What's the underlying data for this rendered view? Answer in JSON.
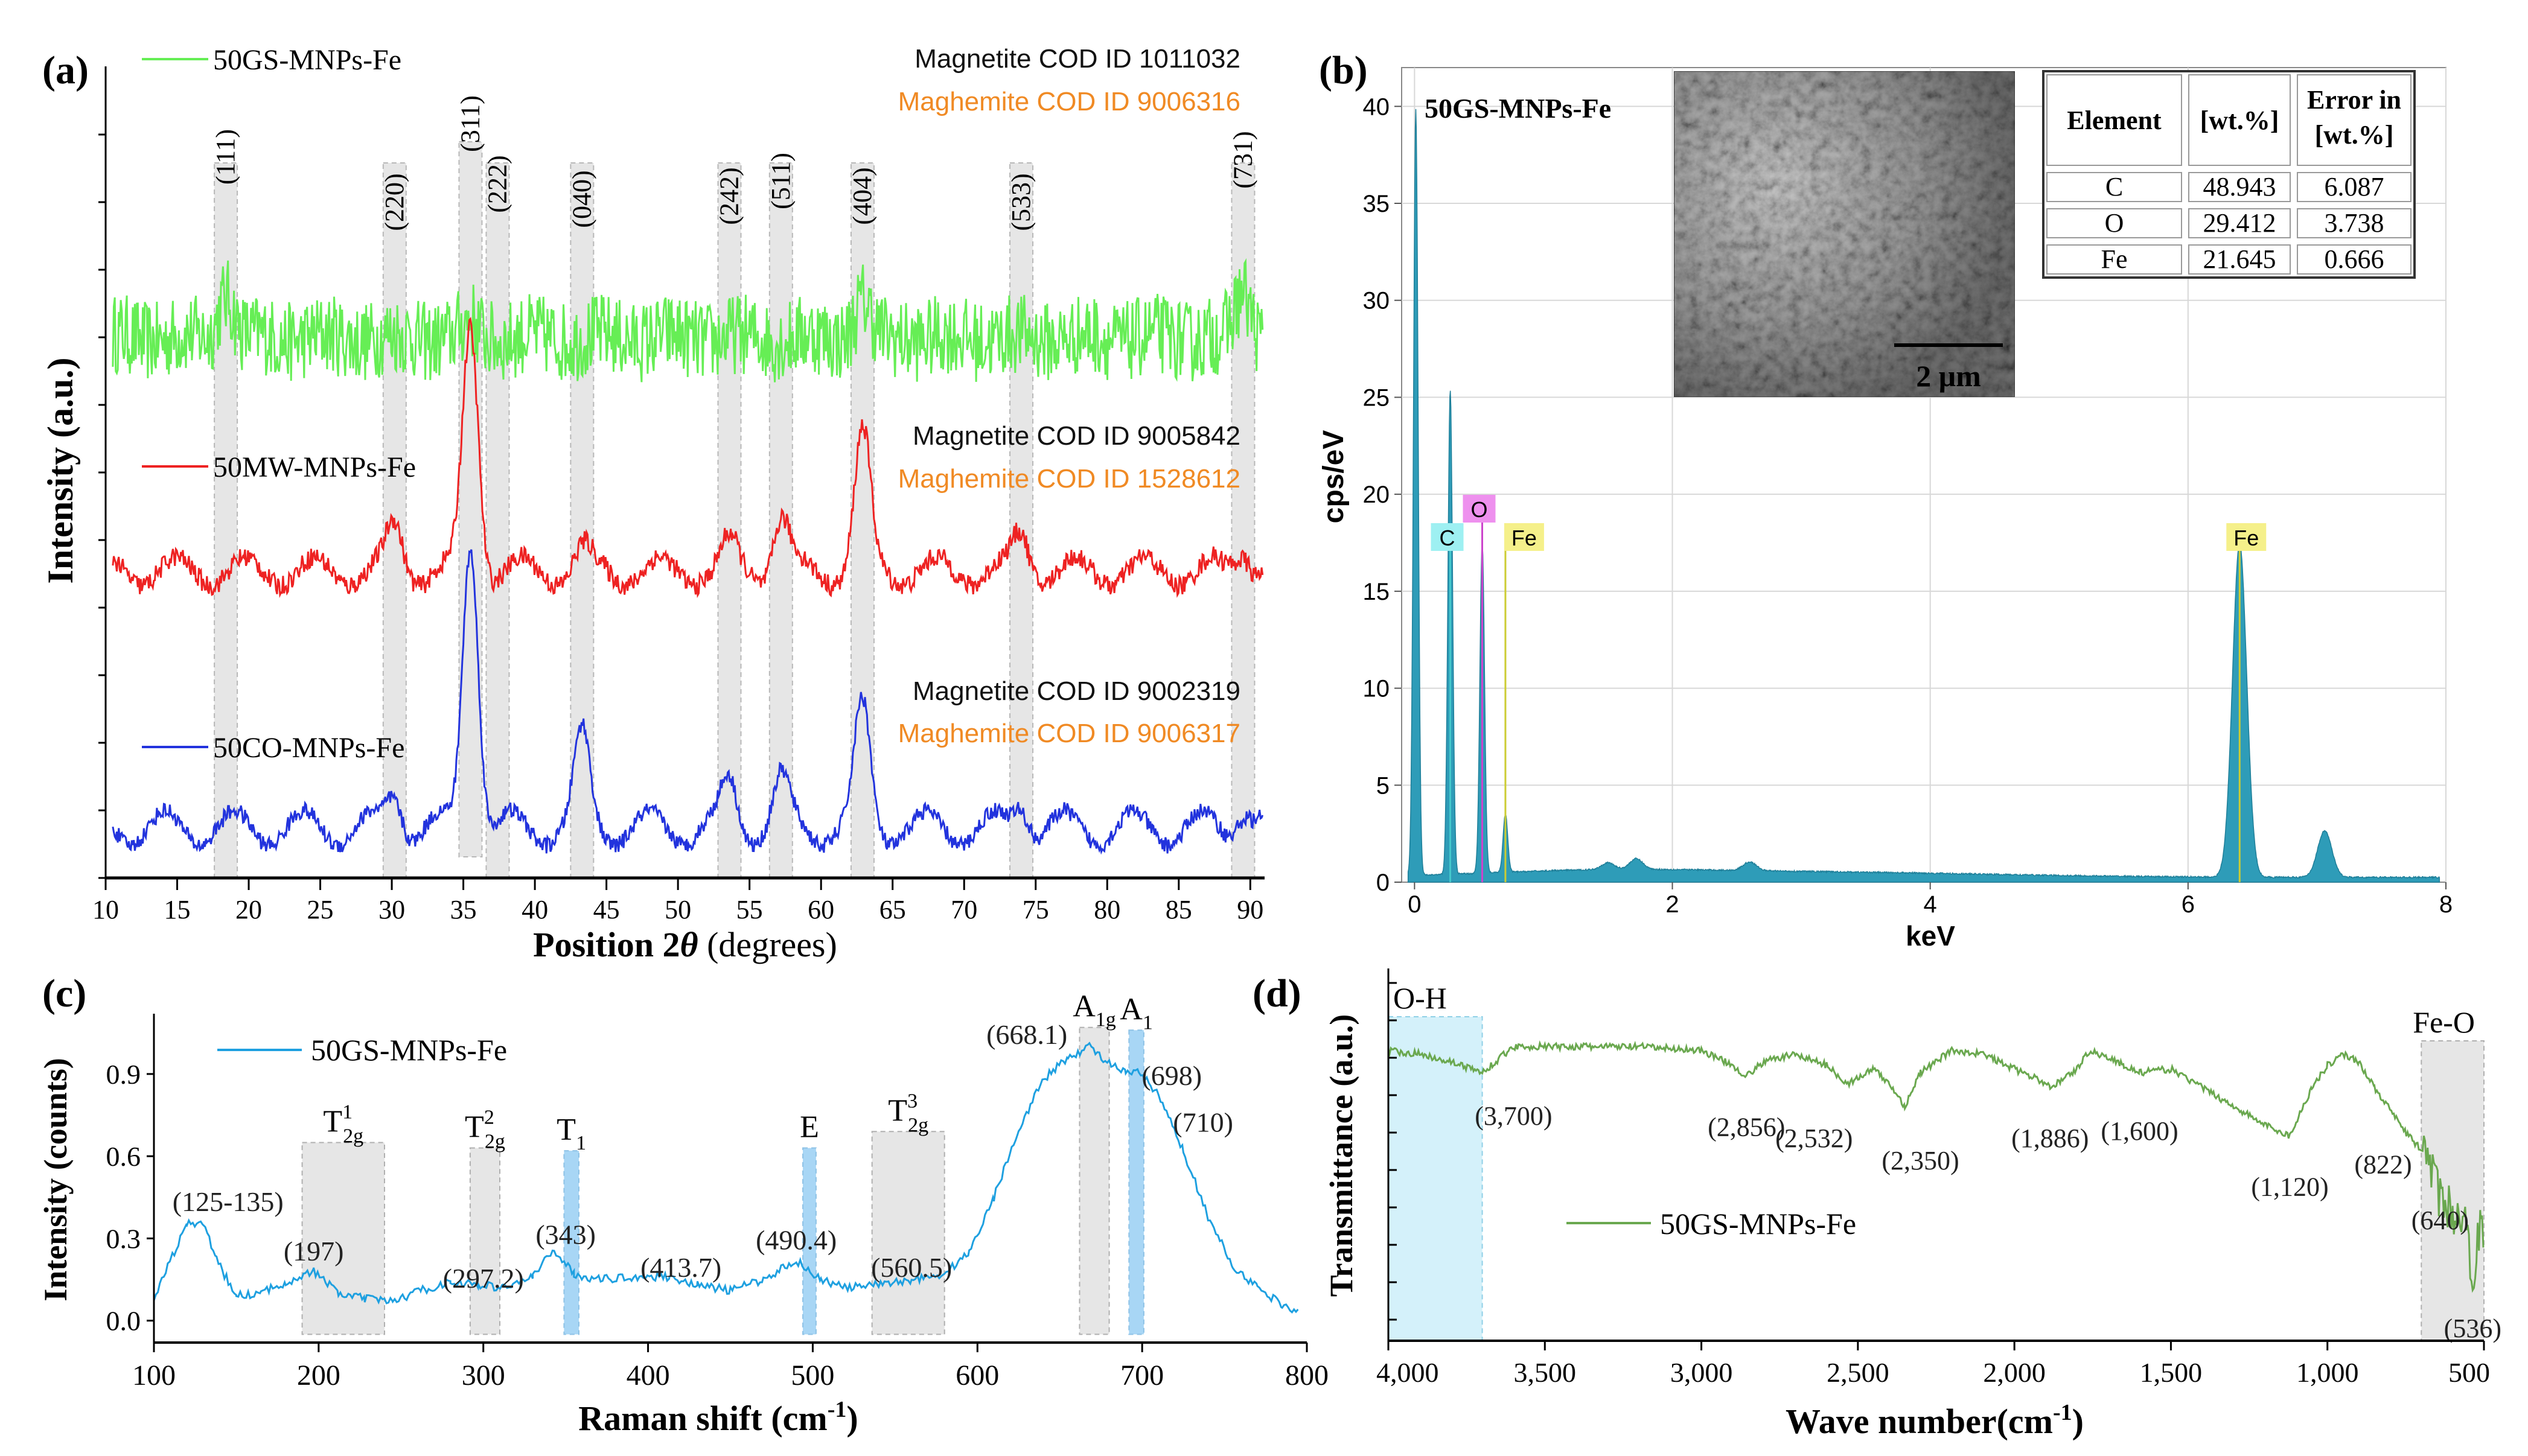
{
  "panel_labels": {
    "a": "(a)",
    "b": "(b)",
    "c": "(c)",
    "d": "(d)"
  },
  "chart_data": [
    {
      "id": "xrd",
      "type": "line",
      "xlabel_main": "Position 2",
      "xlabel_theta": "θ",
      "xlabel_rest": " (degrees)",
      "ylabel": "Intensity (a.u.)",
      "xlim": [
        10,
        91
      ],
      "x_ticks": [
        10,
        15,
        20,
        25,
        30,
        35,
        40,
        45,
        50,
        55,
        60,
        65,
        70,
        75,
        80,
        85,
        90
      ],
      "peaks": [
        {
          "label": "(111)",
          "x": 18.4
        },
        {
          "label": "(220)",
          "x": 30.2
        },
        {
          "label": "(311)",
          "x": 35.5
        },
        {
          "label": "(222)",
          "x": 37.4
        },
        {
          "label": "(040)",
          "x": 43.3
        },
        {
          "label": "(242)",
          "x": 53.6
        },
        {
          "label": "(511)",
          "x": 57.2
        },
        {
          "label": "(404)",
          "x": 62.9
        },
        {
          "label": "(533)",
          "x": 74.0
        },
        {
          "label": "(731)",
          "x": 89.5
        }
      ],
      "series": [
        {
          "name": "50GS-MNPs-Fe",
          "color": "#66ee55",
          "magnetite": "Magnetite COD ID 1011032",
          "maghemite": "Maghemite COD ID 9006316",
          "baseline": 0.66,
          "amp": 0.09,
          "noise": 0.1,
          "peaks": [
            [
              35.5,
              0.2
            ],
            [
              18.4,
              0.6
            ],
            [
              62.9,
              0.5
            ],
            [
              89.5,
              0.6
            ]
          ]
        },
        {
          "name": "50MW-MNPs-Fe",
          "color": "#ee2222",
          "magnetite": "Magnetite COD ID 9005842",
          "maghemite": "Maghemite COD ID 1528612",
          "baseline": 0.36,
          "amp": 0.3,
          "noise": 0.025,
          "peaks": [
            [
              30.2,
              0.18
            ],
            [
              35.5,
              1.0
            ],
            [
              43.3,
              0.08
            ],
            [
              53.6,
              0.1
            ],
            [
              57.2,
              0.22
            ],
            [
              62.9,
              0.55
            ],
            [
              74.0,
              0.15
            ],
            [
              89.5,
              0.1
            ]
          ]
        },
        {
          "name": "50CO-MNPs-Fe",
          "color": "#2233dd",
          "magnetite": "Magnetite COD ID 9002319",
          "maghemite": "Maghemite COD ID 9006317",
          "baseline": 0.04,
          "amp": 0.36,
          "noise": 0.02,
          "peaks": [
            [
              30.2,
              0.12
            ],
            [
              35.5,
              1.0
            ],
            [
              43.3,
              0.3
            ],
            [
              53.6,
              0.15
            ],
            [
              57.2,
              0.15
            ],
            [
              62.9,
              0.4
            ],
            [
              74.0,
              0.1
            ],
            [
              89.5,
              0.08
            ]
          ]
        }
      ],
      "color_magnetite": "#111111",
      "color_maghemite": "#f08a24"
    },
    {
      "id": "edx",
      "type": "area",
      "title": "50GS-MNPs-Fe",
      "xlabel": "keV",
      "ylabel": "cps/eV",
      "xlim": [
        -0.1,
        8.0
      ],
      "ylim": [
        0,
        42
      ],
      "x_ticks": [
        0,
        2,
        4,
        6,
        8
      ],
      "y_ticks": [
        0,
        5,
        10,
        15,
        20,
        25,
        30,
        35,
        40
      ],
      "fill_color": "#2e9cb8",
      "peaks": [
        {
          "label": "C",
          "x": 0.277,
          "y": 25,
          "tag_color": "#9ef0f2"
        },
        {
          "label": "O",
          "x": 0.525,
          "y": 17,
          "tag_color": "#ee90ee"
        },
        {
          "label": "Fe",
          "x": 0.705,
          "y": 3,
          "tag_color": "#f5f08a"
        },
        {
          "label": "Fe",
          "x": 6.4,
          "y": 17.2,
          "tag_color": "#f5f08a"
        }
      ],
      "minor_peaks": [
        [
          0.01,
          39.5
        ],
        [
          7.06,
          2.4
        ],
        [
          1.72,
          0.55
        ],
        [
          2.6,
          0.45
        ],
        [
          1.5,
          0.35
        ]
      ],
      "inset_scale": "2 μm",
      "table": {
        "headers": [
          "Element",
          "[wt.%]",
          "Error in [wt.%]"
        ],
        "rows": [
          [
            "C",
            "48.943",
            "6.087"
          ],
          [
            "O",
            "29.412",
            "3.738"
          ],
          [
            "Fe",
            "21.645",
            "0.666"
          ]
        ]
      }
    },
    {
      "id": "raman",
      "type": "line",
      "series_name": "50GS-MNPs-Fe",
      "color": "#1ea0e0",
      "xlabel": "Raman shift (cm",
      "xlabel_sup": "-1",
      "xlabel_end": ")",
      "ylabel": "Intensity (counts)",
      "xlim": [
        100,
        800
      ],
      "ylim": [
        -0.08,
        1.12
      ],
      "x_ticks": [
        100,
        200,
        300,
        400,
        500,
        600,
        700,
        800
      ],
      "y_ticks": [
        0.0,
        0.3,
        0.6,
        0.9
      ],
      "bands": [
        {
          "sym": "T",
          "sup": "1",
          "sub": "2g",
          "x0": 190,
          "x1": 240,
          "top": 0.65,
          "style": "gray"
        },
        {
          "sym": "T",
          "sup": "2",
          "sub": "2g",
          "x0": 292,
          "x1": 310,
          "top": 0.63,
          "style": "gray"
        },
        {
          "sym": "T",
          "sup": "",
          "sub": "1",
          "x0": 349,
          "x1": 358,
          "top": 0.62,
          "style": "blue"
        },
        {
          "sym": "E",
          "sup": "",
          "sub": "",
          "x0": 494,
          "x1": 502,
          "top": 0.63,
          "style": "blue"
        },
        {
          "sym": "T",
          "sup": "3",
          "sub": "2g",
          "x0": 536,
          "x1": 580,
          "top": 0.69,
          "style": "gray"
        },
        {
          "sym": "A",
          "sup": "",
          "sub": "1g",
          "x0": 662,
          "x1": 680,
          "top": 1.07,
          "style": "gray"
        },
        {
          "sym": "A",
          "sup": "",
          "sub": "1",
          "x0": 692,
          "x1": 701,
          "top": 1.06,
          "style": "blue"
        }
      ],
      "annotations": [
        {
          "text": "(125-135)",
          "x": 145,
          "y": 0.4
        },
        {
          "text": "(197)",
          "x": 197,
          "y": 0.22
        },
        {
          "text": "(297.2)",
          "x": 300,
          "y": 0.12
        },
        {
          "text": "(343)",
          "x": 350,
          "y": 0.28
        },
        {
          "text": "(413.7)",
          "x": 420,
          "y": 0.16
        },
        {
          "text": "(490.4)",
          "x": 490,
          "y": 0.26
        },
        {
          "text": "(560.5)",
          "x": 560,
          "y": 0.16
        },
        {
          "text": "(668.1)",
          "x": 630,
          "y": 1.01
        },
        {
          "text": "(698)",
          "x": 718,
          "y": 0.86
        },
        {
          "text": "(710)",
          "x": 737,
          "y": 0.69
        }
      ],
      "curve": [
        [
          100,
          0.08
        ],
        [
          110,
          0.22
        ],
        [
          120,
          0.35
        ],
        [
          130,
          0.36
        ],
        [
          138,
          0.22
        ],
        [
          150,
          0.09
        ],
        [
          165,
          0.1
        ],
        [
          180,
          0.14
        ],
        [
          197,
          0.18
        ],
        [
          212,
          0.1
        ],
        [
          228,
          0.08
        ],
        [
          245,
          0.07
        ],
        [
          262,
          0.11
        ],
        [
          280,
          0.14
        ],
        [
          297,
          0.13
        ],
        [
          312,
          0.12
        ],
        [
          330,
          0.16
        ],
        [
          343,
          0.26
        ],
        [
          355,
          0.17
        ],
        [
          370,
          0.15
        ],
        [
          390,
          0.16
        ],
        [
          413,
          0.16
        ],
        [
          430,
          0.13
        ],
        [
          450,
          0.11
        ],
        [
          470,
          0.15
        ],
        [
          490,
          0.22
        ],
        [
          505,
          0.15
        ],
        [
          520,
          0.12
        ],
        [
          540,
          0.13
        ],
        [
          560,
          0.15
        ],
        [
          580,
          0.17
        ],
        [
          595,
          0.25
        ],
        [
          610,
          0.45
        ],
        [
          625,
          0.7
        ],
        [
          640,
          0.88
        ],
        [
          655,
          0.96
        ],
        [
          668,
          1.0
        ],
        [
          680,
          0.94
        ],
        [
          690,
          0.9
        ],
        [
          698,
          0.91
        ],
        [
          710,
          0.82
        ],
        [
          725,
          0.62
        ],
        [
          740,
          0.38
        ],
        [
          755,
          0.2
        ],
        [
          770,
          0.12
        ],
        [
          785,
          0.06
        ],
        [
          795,
          0.03
        ]
      ]
    },
    {
      "id": "ftir",
      "type": "line",
      "series_name": "50GS-MNPs-Fe",
      "color": "#6aa84f",
      "xlabel": "Wave number(cm",
      "xlabel_sup": "-1",
      "xlabel_end": ")",
      "ylabel": "Transmittance (a.u.)",
      "xlim": [
        4000,
        500
      ],
      "ylim": [
        0,
        1
      ],
      "x_ticks": [
        4000,
        3500,
        3000,
        2500,
        2000,
        1500,
        1000,
        500
      ],
      "x_tick_labels": [
        "4,000",
        "3,500",
        "3,000",
        "2,500",
        "2,000",
        "1,500",
        "1,000",
        "500"
      ],
      "regions": [
        {
          "label": "O-H",
          "x0": 4000,
          "x1": 3700,
          "style": "blue"
        },
        {
          "label": "Fe-O",
          "x0": 700,
          "x1": 500,
          "style": "gray"
        }
      ],
      "annotations": [
        {
          "text": "(3,700)",
          "x": 3600,
          "y": 0.58
        },
        {
          "text": "(2,856)",
          "x": 2856,
          "y": 0.55
        },
        {
          "text": "(2,532)",
          "x": 2640,
          "y": 0.52
        },
        {
          "text": "(2,350)",
          "x": 2300,
          "y": 0.46
        },
        {
          "text": "(1,886)",
          "x": 1886,
          "y": 0.52
        },
        {
          "text": "(1,600)",
          "x": 1600,
          "y": 0.54
        },
        {
          "text": "(1,120)",
          "x": 1120,
          "y": 0.39
        },
        {
          "text": "(822)",
          "x": 822,
          "y": 0.45
        },
        {
          "text": "(640)",
          "x": 640,
          "y": 0.3
        },
        {
          "text": "(536)",
          "x": 536,
          "y": 0.01
        }
      ],
      "curve": [
        [
          4000,
          0.78
        ],
        [
          3900,
          0.77
        ],
        [
          3800,
          0.75
        ],
        [
          3700,
          0.72
        ],
        [
          3600,
          0.79
        ],
        [
          3400,
          0.79
        ],
        [
          3200,
          0.79
        ],
        [
          3000,
          0.78
        ],
        [
          2900,
          0.74
        ],
        [
          2856,
          0.71
        ],
        [
          2800,
          0.75
        ],
        [
          2700,
          0.77
        ],
        [
          2600,
          0.74
        ],
        [
          2532,
          0.69
        ],
        [
          2450,
          0.73
        ],
        [
          2400,
          0.69
        ],
        [
          2350,
          0.63
        ],
        [
          2300,
          0.72
        ],
        [
          2200,
          0.78
        ],
        [
          2100,
          0.77
        ],
        [
          2000,
          0.73
        ],
        [
          1920,
          0.7
        ],
        [
          1886,
          0.68
        ],
        [
          1800,
          0.73
        ],
        [
          1760,
          0.78
        ],
        [
          1700,
          0.76
        ],
        [
          1650,
          0.74
        ],
        [
          1600,
          0.72
        ],
        [
          1500,
          0.73
        ],
        [
          1400,
          0.68
        ],
        [
          1300,
          0.63
        ],
        [
          1200,
          0.58
        ],
        [
          1120,
          0.55
        ],
        [
          1050,
          0.68
        ],
        [
          1000,
          0.74
        ],
        [
          950,
          0.77
        ],
        [
          900,
          0.75
        ],
        [
          850,
          0.68
        ],
        [
          800,
          0.62
        ],
        [
          760,
          0.57
        ],
        [
          720,
          0.53
        ],
        [
          680,
          0.5
        ],
        [
          640,
          0.38
        ],
        [
          600,
          0.35
        ],
        [
          560,
          0.3
        ],
        [
          536,
          0.18
        ],
        [
          510,
          0.32
        ],
        [
          500,
          0.22
        ]
      ],
      "legend_position": "center-left"
    }
  ]
}
